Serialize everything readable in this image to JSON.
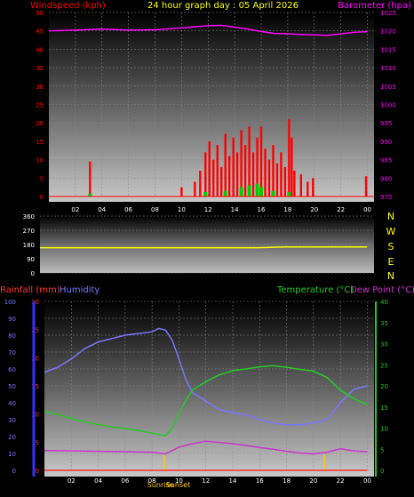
{
  "title": "24 hour graph day : 05 April 2026",
  "colors": {
    "background": "#000000",
    "wind": "#ff0000",
    "gust": "#00cc00",
    "barometer": "#ff00ff",
    "direction": "#ffff00",
    "rainfall": "#ff3333",
    "humidity": "#7777ff",
    "temperature": "#22cc22",
    "dewpoint": "#cc33cc",
    "sun_marker": "#ffcc00",
    "axis_text": "#ffffff"
  },
  "chart_data": [
    {
      "type": "bar",
      "name": "wind-barometer",
      "left_label": "Windspeed (kph)",
      "right_label": "Barometer (hpa)",
      "x_ticks": [
        "02",
        "04",
        "06",
        "08",
        "10",
        "12",
        "14",
        "16",
        "18",
        "20",
        "22",
        "00"
      ],
      "x_hours": [
        2,
        4,
        6,
        8,
        10,
        12,
        14,
        16,
        18,
        20,
        22,
        24
      ],
      "xlim": [
        0,
        24.5
      ],
      "ylim_left": [
        0,
        50
      ],
      "ylim_right": [
        975,
        1025
      ],
      "y_ticks_left": [
        0,
        5,
        10,
        15,
        20,
        25,
        30,
        35,
        40,
        45,
        50
      ],
      "y_ticks_right": [
        975,
        980,
        985,
        990,
        995,
        1000,
        1005,
        1010,
        1015,
        1020,
        1025
      ],
      "wind_bars": [
        {
          "x": 3.1,
          "y": 9.5
        },
        {
          "x": 10.0,
          "y": 2.5
        },
        {
          "x": 11.0,
          "y": 4.0
        },
        {
          "x": 11.4,
          "y": 7.0
        },
        {
          "x": 11.8,
          "y": 12.0
        },
        {
          "x": 12.1,
          "y": 15.0
        },
        {
          "x": 12.4,
          "y": 10.0
        },
        {
          "x": 12.7,
          "y": 14.0
        },
        {
          "x": 13.0,
          "y": 8.0
        },
        {
          "x": 13.3,
          "y": 17.0
        },
        {
          "x": 13.6,
          "y": 11.0
        },
        {
          "x": 13.9,
          "y": 16.0
        },
        {
          "x": 14.2,
          "y": 12.0
        },
        {
          "x": 14.5,
          "y": 18.0
        },
        {
          "x": 14.8,
          "y": 14.0
        },
        {
          "x": 15.1,
          "y": 19.0
        },
        {
          "x": 15.4,
          "y": 12.0
        },
        {
          "x": 15.7,
          "y": 16.0
        },
        {
          "x": 16.0,
          "y": 19.0
        },
        {
          "x": 16.3,
          "y": 13.0
        },
        {
          "x": 16.6,
          "y": 10.0
        },
        {
          "x": 16.9,
          "y": 14.0
        },
        {
          "x": 17.2,
          "y": 9.0
        },
        {
          "x": 17.5,
          "y": 12.0
        },
        {
          "x": 17.8,
          "y": 8.0
        },
        {
          "x": 18.1,
          "y": 21.0
        },
        {
          "x": 18.3,
          "y": 16.0
        },
        {
          "x": 18.5,
          "y": 7.0
        },
        {
          "x": 19.0,
          "y": 6.0
        },
        {
          "x": 19.5,
          "y": 4.0
        },
        {
          "x": 19.9,
          "y": 5.0
        },
        {
          "x": 23.9,
          "y": 5.5
        }
      ],
      "gust_points": [
        {
          "x": 3.1,
          "y": 0.8
        },
        {
          "x": 11.8,
          "y": 1.2
        },
        {
          "x": 13.3,
          "y": 1.5
        },
        {
          "x": 14.5,
          "y": 2.5
        },
        {
          "x": 15.1,
          "y": 3.0
        },
        {
          "x": 15.7,
          "y": 3.5
        },
        {
          "x": 16.0,
          "y": 2.5
        },
        {
          "x": 16.9,
          "y": 1.5
        },
        {
          "x": 18.1,
          "y": 1.2
        }
      ],
      "barometer": [
        {
          "x": 0.0,
          "y": 1020.0
        },
        {
          "x": 2.0,
          "y": 1020.2
        },
        {
          "x": 4.0,
          "y": 1020.5
        },
        {
          "x": 6.0,
          "y": 1020.2
        },
        {
          "x": 8.0,
          "y": 1020.3
        },
        {
          "x": 10.0,
          "y": 1020.8
        },
        {
          "x": 12.0,
          "y": 1021.4
        },
        {
          "x": 13.0,
          "y": 1021.5
        },
        {
          "x": 14.0,
          "y": 1021.0
        },
        {
          "x": 15.0,
          "y": 1020.5
        },
        {
          "x": 16.0,
          "y": 1019.8
        },
        {
          "x": 17.0,
          "y": 1019.3
        },
        {
          "x": 18.0,
          "y": 1019.2
        },
        {
          "x": 19.0,
          "y": 1019.0
        },
        {
          "x": 20.0,
          "y": 1018.9
        },
        {
          "x": 21.0,
          "y": 1018.8
        },
        {
          "x": 22.0,
          "y": 1019.2
        },
        {
          "x": 23.0,
          "y": 1019.6
        },
        {
          "x": 24.0,
          "y": 1019.8
        }
      ]
    },
    {
      "type": "line",
      "name": "wind-direction",
      "y_ticks": [
        0,
        90,
        180,
        270,
        360
      ],
      "ylim": [
        0,
        360
      ],
      "xlim": [
        0,
        24.5
      ],
      "compass_labels": [
        "N",
        "W",
        "S",
        "E",
        "N"
      ],
      "direction": [
        {
          "x": 0.0,
          "y": 160
        },
        {
          "x": 16.0,
          "y": 160
        },
        {
          "x": 18.0,
          "y": 164
        },
        {
          "x": 24.0,
          "y": 165
        }
      ]
    },
    {
      "type": "line",
      "name": "rain-humidity-temperature",
      "rainfall_label": "Rainfall (mm)",
      "humidity_label": "Humidity",
      "temperature_label": "Temperature (°C)",
      "dewpoint_label": "Dew Point (°C)",
      "x_ticks": [
        "02",
        "04",
        "06",
        "08",
        "10",
        "12",
        "14",
        "16",
        "18",
        "20",
        "22",
        "00"
      ],
      "xlim": [
        0,
        24.5
      ],
      "ylim_humidity": [
        0,
        100
      ],
      "ylim_rainfall": [
        0,
        30
      ],
      "ylim_temp": [
        0,
        40
      ],
      "y_ticks_humidity": [
        0,
        10,
        20,
        30,
        40,
        50,
        60,
        70,
        80,
        90,
        100
      ],
      "y_ticks_rainfall": [
        0,
        5,
        10,
        15,
        20,
        25,
        30
      ],
      "y_ticks_temp": [
        0,
        5,
        10,
        15,
        20,
        25,
        30,
        35,
        40
      ],
      "sunrise_label": "Sunrise",
      "sunset_label": "Sunset",
      "sunrise_hour": 8.9,
      "sunset_hour": 20.8,
      "rainfall": [
        {
          "x": 0.0,
          "y": 0
        },
        {
          "x": 24.0,
          "y": 0
        }
      ],
      "humidity": [
        {
          "x": 0.0,
          "y": 58
        },
        {
          "x": 1.0,
          "y": 61
        },
        {
          "x": 2.0,
          "y": 66
        },
        {
          "x": 3.0,
          "y": 72
        },
        {
          "x": 4.0,
          "y": 76
        },
        {
          "x": 5.0,
          "y": 78
        },
        {
          "x": 6.0,
          "y": 80
        },
        {
          "x": 7.0,
          "y": 81
        },
        {
          "x": 8.0,
          "y": 82
        },
        {
          "x": 8.5,
          "y": 84
        },
        {
          "x": 9.0,
          "y": 83
        },
        {
          "x": 9.5,
          "y": 77
        },
        {
          "x": 10.0,
          "y": 66
        },
        {
          "x": 10.5,
          "y": 54
        },
        {
          "x": 11.0,
          "y": 46
        },
        {
          "x": 12.0,
          "y": 41
        },
        {
          "x": 13.0,
          "y": 36
        },
        {
          "x": 14.0,
          "y": 34
        },
        {
          "x": 15.0,
          "y": 33
        },
        {
          "x": 16.0,
          "y": 30
        },
        {
          "x": 17.0,
          "y": 28
        },
        {
          "x": 18.0,
          "y": 27
        },
        {
          "x": 19.0,
          "y": 27
        },
        {
          "x": 20.0,
          "y": 28
        },
        {
          "x": 21.0,
          "y": 30
        },
        {
          "x": 22.0,
          "y": 40
        },
        {
          "x": 23.0,
          "y": 48
        },
        {
          "x": 24.0,
          "y": 50
        }
      ],
      "temperature": [
        {
          "x": 0.0,
          "y": 14.0
        },
        {
          "x": 1.0,
          "y": 13.2
        },
        {
          "x": 2.0,
          "y": 12.3
        },
        {
          "x": 3.0,
          "y": 11.5
        },
        {
          "x": 4.0,
          "y": 10.8
        },
        {
          "x": 5.0,
          "y": 10.3
        },
        {
          "x": 6.0,
          "y": 9.9
        },
        {
          "x": 7.0,
          "y": 9.4
        },
        {
          "x": 8.0,
          "y": 8.8
        },
        {
          "x": 9.0,
          "y": 8.2
        },
        {
          "x": 9.5,
          "y": 10.0
        },
        {
          "x": 10.0,
          "y": 13.5
        },
        {
          "x": 10.5,
          "y": 16.5
        },
        {
          "x": 11.0,
          "y": 19.0
        },
        {
          "x": 12.0,
          "y": 21.0
        },
        {
          "x": 13.0,
          "y": 22.6
        },
        {
          "x": 14.0,
          "y": 23.6
        },
        {
          "x": 15.0,
          "y": 24.0
        },
        {
          "x": 16.0,
          "y": 24.5
        },
        {
          "x": 17.0,
          "y": 24.8
        },
        {
          "x": 18.0,
          "y": 24.4
        },
        {
          "x": 19.0,
          "y": 23.9
        },
        {
          "x": 20.0,
          "y": 23.5
        },
        {
          "x": 21.0,
          "y": 22.0
        },
        {
          "x": 22.0,
          "y": 19.0
        },
        {
          "x": 23.0,
          "y": 17.0
        },
        {
          "x": 24.0,
          "y": 15.5
        }
      ],
      "dewpoint": [
        {
          "x": 0.0,
          "y": 4.7
        },
        {
          "x": 2.0,
          "y": 4.6
        },
        {
          "x": 4.0,
          "y": 4.5
        },
        {
          "x": 6.0,
          "y": 4.4
        },
        {
          "x": 8.0,
          "y": 4.3
        },
        {
          "x": 9.0,
          "y": 3.9
        },
        {
          "x": 10.0,
          "y": 5.5
        },
        {
          "x": 11.0,
          "y": 6.3
        },
        {
          "x": 12.0,
          "y": 6.9
        },
        {
          "x": 13.0,
          "y": 6.6
        },
        {
          "x": 14.0,
          "y": 6.3
        },
        {
          "x": 15.0,
          "y": 5.9
        },
        {
          "x": 16.0,
          "y": 5.4
        },
        {
          "x": 17.0,
          "y": 5.0
        },
        {
          "x": 18.0,
          "y": 4.5
        },
        {
          "x": 19.0,
          "y": 4.1
        },
        {
          "x": 20.0,
          "y": 3.9
        },
        {
          "x": 21.0,
          "y": 4.3
        },
        {
          "x": 22.0,
          "y": 5.1
        },
        {
          "x": 23.0,
          "y": 4.6
        },
        {
          "x": 24.0,
          "y": 4.4
        }
      ]
    }
  ]
}
